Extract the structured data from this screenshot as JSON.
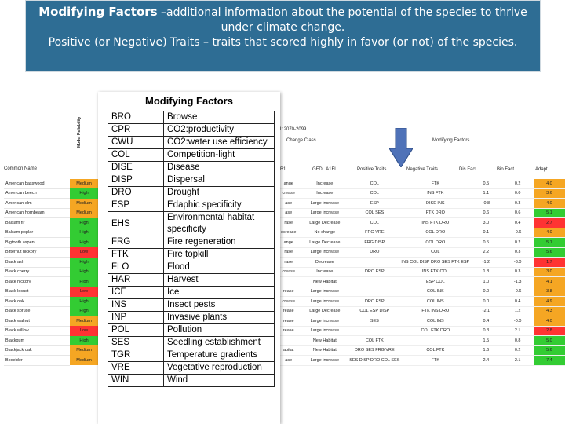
{
  "header": {
    "title_bold": "Modifying Factors",
    "title_rest": " –additional information about the potential of the species to thrive under climate change.",
    "line2": "Positive (or Negative) Traits – traits that scored highly in favor  (or not) of the species."
  },
  "background": {
    "col_common": "Common Name",
    "col_model": "Model Reliability",
    "scenario": "II: 2070-2099",
    "change_class": "Change Class",
    "mf_label": "Modifying Factors",
    "b1": "B1",
    "a1fi": "GFDL A1FI",
    "pos": "Positive Traits",
    "neg": "Negative Traits",
    "disfact": "Dis.Fact",
    "biofact": "Bio.Fact",
    "adapt": "Adapt",
    "species": [
      {
        "name": "American basswood",
        "rel": "Medium",
        "cls": "medium",
        "b1": "ange",
        "a1fi": "Increase",
        "pos": "COL",
        "neg": "FTK",
        "dis": "0.5",
        "bio": "0.2",
        "adapt": "4.0",
        "ac": "o"
      },
      {
        "name": "American beech",
        "rel": "High",
        "cls": "high",
        "b1": "crease",
        "a1fi": "Increase",
        "pos": "COL",
        "neg": "INS FTK",
        "dis": "1.1",
        "bio": "0.0",
        "adapt": "3.6",
        "ac": "o"
      },
      {
        "name": "American elm",
        "rel": "Medium",
        "cls": "medium",
        "b1": "ase",
        "a1fi": "Large increase",
        "pos": "ESP",
        "neg": "DISE INS",
        "dis": "-0.8",
        "bio": "0.3",
        "adapt": "4.0",
        "ac": "o"
      },
      {
        "name": "American hornbeam",
        "rel": "Medium",
        "cls": "medium",
        "b1": "ase",
        "a1fi": "Large increase",
        "pos": "COL SES",
        "neg": "FTK DRO",
        "dis": "0.6",
        "bio": "0.6",
        "adapt": "5.1",
        "ac": "g"
      },
      {
        "name": "Balsam fir",
        "rel": "High",
        "cls": "high",
        "b1": "rase",
        "a1fi": "Large Decrease",
        "pos": "COL",
        "neg": "INS FTK DRO",
        "dis": "3.0",
        "bio": "0.4",
        "adapt": "2.7",
        "ac": "r"
      },
      {
        "name": "Balsam poplar",
        "rel": "High",
        "cls": "high",
        "b1": "ecrease",
        "a1fi": "No change",
        "pos": "FRG VRE",
        "neg": "COL DRO",
        "dis": "0.1",
        "bio": "-0.6",
        "adapt": "4.0",
        "ac": "o"
      },
      {
        "name": "Bigtooth aspen",
        "rel": "High",
        "cls": "high",
        "b1": "ange",
        "a1fi": "Large Decrease",
        "pos": "FRG DISP",
        "neg": "COL DRO",
        "dis": "0.5",
        "bio": "0.2",
        "adapt": "5.1",
        "ac": "g"
      },
      {
        "name": "Bitternut hickory",
        "rel": "Low",
        "cls": "low",
        "b1": "rase",
        "a1fi": "Large increase",
        "pos": "DRO",
        "neg": "COL",
        "dis": "2.2",
        "bio": "0.3",
        "adapt": "5.6",
        "ac": "g"
      },
      {
        "name": "Black ash",
        "rel": "High",
        "cls": "high",
        "b1": "rase",
        "a1fi": "Decrease",
        "pos": "",
        "neg": "INS COL DISP DRO SES FTK ESP",
        "dis": "-1.2",
        "bio": "-3.0",
        "adapt": "1.7",
        "ac": "r"
      },
      {
        "name": "Black cherry",
        "rel": "High",
        "cls": "high",
        "b1": "crease",
        "a1fi": "Increase",
        "pos": "DRO ESP",
        "neg": "INS FTK COL",
        "dis": "1.8",
        "bio": "0.3",
        "adapt": "3.0",
        "ac": "o"
      },
      {
        "name": "Black hickory",
        "rel": "High",
        "cls": "high",
        "b1": "",
        "a1fi": "New Habitat",
        "pos": "",
        "neg": "ESP COL",
        "dis": "1.0",
        "bio": "-1.3",
        "adapt": "4.1",
        "ac": "o"
      },
      {
        "name": "Black locust",
        "rel": "Low",
        "cls": "low",
        "b1": "rease",
        "a1fi": "Large increase",
        "pos": "",
        "neg": "COL INS",
        "dis": "0.0",
        "bio": "-0.6",
        "adapt": "3.8",
        "ac": "o"
      },
      {
        "name": "Black oak",
        "rel": "High",
        "cls": "high",
        "b1": "crease",
        "a1fi": "Large increase",
        "pos": "DRO ESP",
        "neg": "COL INS",
        "dis": "0.0",
        "bio": "0.4",
        "adapt": "4.9",
        "ac": "o"
      },
      {
        "name": "Black spruce",
        "rel": "High",
        "cls": "high",
        "b1": "rease",
        "a1fi": "Large Decrease",
        "pos": "COL ESP DISP",
        "neg": "FTK INS DRO",
        "dis": "-2.1",
        "bio": "1.2",
        "adapt": "4.3",
        "ac": "o"
      },
      {
        "name": "Black walnut",
        "rel": "Medium",
        "cls": "medium",
        "b1": "rease",
        "a1fi": "Large increase",
        "pos": "SES",
        "neg": "COL INS",
        "dis": "0.4",
        "bio": "-0.0",
        "adapt": "4.0",
        "ac": "o"
      },
      {
        "name": "Black willow",
        "rel": "Low",
        "cls": "low",
        "b1": "rease",
        "a1fi": "Large increase",
        "pos": "",
        "neg": "COL FTK DRO",
        "dis": "0.3",
        "bio": "2.1",
        "adapt": "2.8",
        "ac": "r"
      },
      {
        "name": "Blackgum",
        "rel": "High",
        "cls": "high",
        "b1": "",
        "a1fi": "New Habitat",
        "pos": "COL FTK",
        "neg": "",
        "dis": "1.5",
        "bio": "0.8",
        "adapt": "5.0",
        "ac": "g"
      },
      {
        "name": "Blackjack oak",
        "rel": "Medium",
        "cls": "medium",
        "b1": "abitat",
        "a1fi": "New Habitat",
        "pos": "DRO SES FRG VRE",
        "neg": "COL FTK",
        "dis": "1.6",
        "bio": "0.2",
        "adapt": "5.6",
        "ac": "g"
      },
      {
        "name": "Boxelder",
        "rel": "Medium",
        "cls": "medium",
        "b1": "ase",
        "a1fi": "Large increase",
        "pos": "SES DISP DRO COL SES",
        "neg": "FTK",
        "dis": "2.4",
        "bio": "2.1",
        "adapt": "7.4",
        "ac": "g"
      }
    ]
  },
  "overlay": {
    "title": "Modifying Factors",
    "factors": [
      {
        "code": "BRO",
        "desc": "Browse"
      },
      {
        "code": "CPR",
        "desc": "CO2:productivity"
      },
      {
        "code": "CWU",
        "desc": "CO2:water use efficiency"
      },
      {
        "code": "COL",
        "desc": "Competition-light"
      },
      {
        "code": "DISE",
        "desc": "Disease"
      },
      {
        "code": "DISP",
        "desc": "Dispersal"
      },
      {
        "code": "DRO",
        "desc": "Drought"
      },
      {
        "code": "ESP",
        "desc": "Edaphic specificity"
      },
      {
        "code": "EHS",
        "desc": "Environmental habitat specificity"
      },
      {
        "code": "FRG",
        "desc": "Fire regeneration"
      },
      {
        "code": "FTK",
        "desc": "Fire topkill"
      },
      {
        "code": "FLO",
        "desc": "Flood"
      },
      {
        "code": "HAR",
        "desc": "Harvest"
      },
      {
        "code": "ICE",
        "desc": "Ice"
      },
      {
        "code": "INS",
        "desc": "Insect pests"
      },
      {
        "code": "INP",
        "desc": "Invasive plants"
      },
      {
        "code": "POL",
        "desc": "Pollution"
      },
      {
        "code": "SES",
        "desc": "Seedling establishment"
      },
      {
        "code": "TGR",
        "desc": "Temperature gradients"
      },
      {
        "code": "VRE",
        "desc": "Vegetative reproduction"
      },
      {
        "code": "WIN",
        "desc": "Wind"
      }
    ]
  }
}
